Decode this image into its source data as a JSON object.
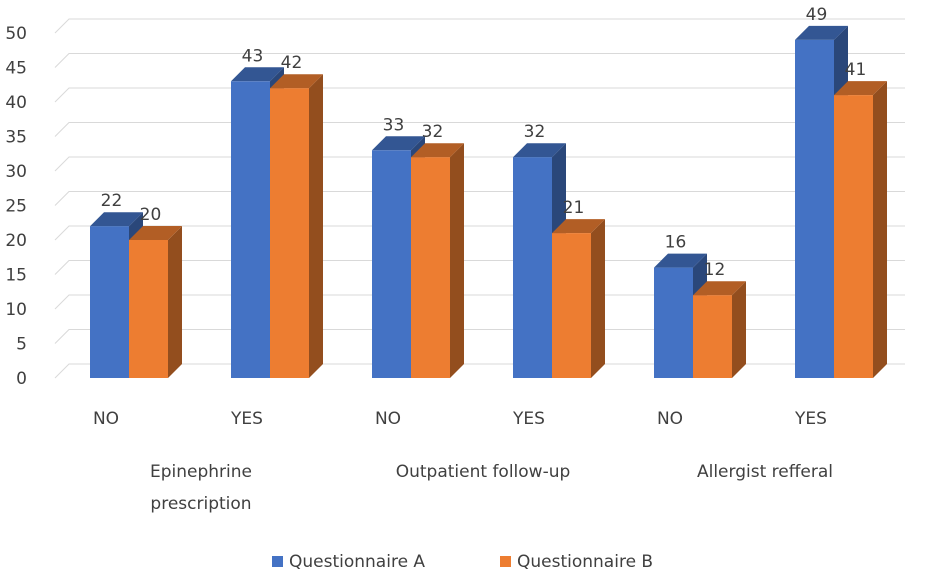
{
  "chart_data": {
    "type": "bar",
    "title": "",
    "xlabel": "",
    "ylabel": "",
    "ylim": [
      0,
      50
    ],
    "yticks": [
      0,
      5,
      10,
      15,
      20,
      25,
      30,
      35,
      40,
      45,
      50
    ],
    "categories": [
      "NO",
      "YES",
      "NO",
      "YES",
      "NO",
      "YES"
    ],
    "groups": [
      {
        "label": "Epinephrine prescription",
        "lines": [
          "Epinephrine",
          "prescription"
        ]
      },
      {
        "label": "Outpatient follow-up",
        "lines": [
          "Outpatient follow-up"
        ]
      },
      {
        "label": "Allergist refferal",
        "lines": [
          "Allergist refferal"
        ]
      }
    ],
    "series": [
      {
        "name": "Questionnaire A",
        "values": [
          22,
          43,
          33,
          32,
          16,
          49
        ],
        "color": "#4472C4"
      },
      {
        "name": "Questionnaire B",
        "values": [
          20,
          42,
          32,
          21,
          12,
          41
        ],
        "color": "#ED7D31"
      }
    ],
    "grid": true,
    "legend": "bottom",
    "style": "3d-clustered-column"
  }
}
